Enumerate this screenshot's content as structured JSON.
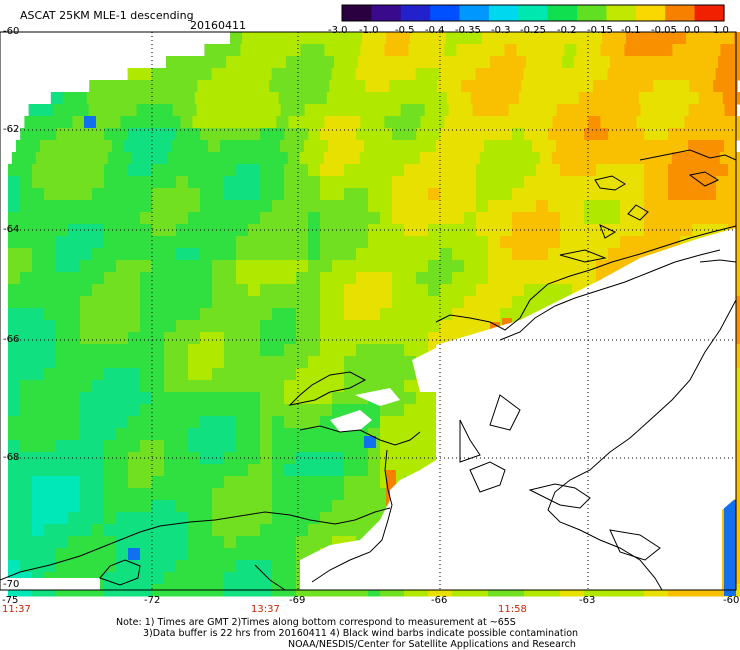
{
  "header": {
    "title": "ASCAT 25KM MLE-1 descending",
    "date": "20160411"
  },
  "colorbar": {
    "labels": [
      "-3.0",
      "-1.0",
      "-0.5",
      "-0.4",
      "-0.35",
      "-0.3",
      "-0.25",
      "-0.2",
      "-0.15",
      "-0.1",
      "-0.05",
      "0.0",
      "1.0"
    ],
    "colors": [
      "#2a0040",
      "#3a0a8c",
      "#2222cc",
      "#0050ff",
      "#0098ff",
      "#00d8f0",
      "#00e8b0",
      "#10e050",
      "#60e020",
      "#c0e800",
      "#f8d800",
      "#f88000",
      "#f02000"
    ]
  },
  "axes": {
    "lat_labels": [
      "-60",
      "-62",
      "-64",
      "-66",
      "-68",
      "-70"
    ],
    "lon_labels": [
      "-75",
      "-72",
      "-69",
      "-66",
      "-63",
      "-60"
    ]
  },
  "times": [
    "11:37",
    "13:37",
    "11:58"
  ],
  "notes": {
    "line1": "Note: 1) Times are GMT 2)Times along bottom correspond to measurement at ~65S",
    "line2": "3)Data buffer is 22 hrs from 20160411 4) Black wind barbs indicate possible contamination",
    "line3": "NOAA/NESDIS/Center for Satellite Applications and Research"
  }
}
